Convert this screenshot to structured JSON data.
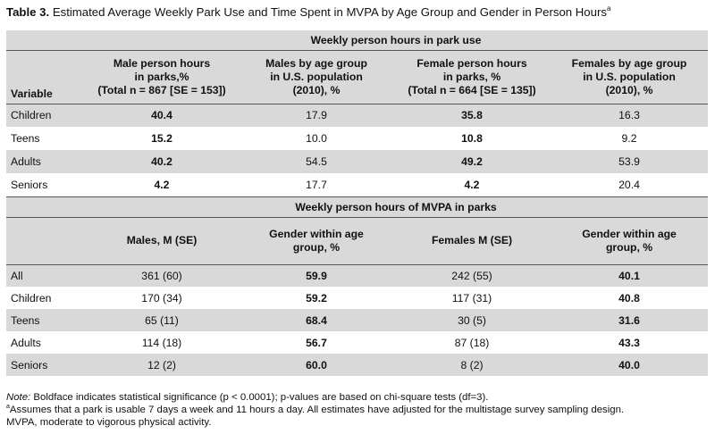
{
  "caption": {
    "label": "Table 3.",
    "text": "Estimated Average Weekly Park Use and Time Spent in MVPA by Age Group and Gender in Person Hours",
    "footnote_mark": "a"
  },
  "section1": {
    "title": "Weekly person hours in park use",
    "headers": {
      "variable": "Variable",
      "male_hours": [
        "Male person hours",
        "in parks,%",
        "(Total n = 867 [SE = 153])"
      ],
      "males_pop": [
        "Males by age group",
        "in U.S. population",
        "(2010), %"
      ],
      "female_hours": [
        "Female person hours",
        "in parks, %",
        "(Total n = 664 [SE = 135])"
      ],
      "females_pop": [
        "Females by age group",
        "in U.S. population",
        "(2010), %"
      ]
    },
    "rows": [
      {
        "label": "Children",
        "male_hours": "40.4",
        "males_pop": "17.9",
        "female_hours": "35.8",
        "females_pop": "16.3"
      },
      {
        "label": "Teens",
        "male_hours": "15.2",
        "males_pop": "10.0",
        "female_hours": "10.8",
        "females_pop": "9.2"
      },
      {
        "label": "Adults",
        "male_hours": "40.2",
        "males_pop": "54.5",
        "female_hours": "49.2",
        "females_pop": "53.9"
      },
      {
        "label": "Seniors",
        "male_hours": "4.2",
        "males_pop": "17.7",
        "female_hours": "4.2",
        "females_pop": "20.4"
      }
    ]
  },
  "section2": {
    "title": "Weekly person hours of MVPA in parks",
    "headers": {
      "males": "Males, M (SE)",
      "gender_m": [
        "Gender within age",
        "group, %"
      ],
      "females": "Females M (SE)",
      "gender_f": [
        "Gender within age",
        "group, %"
      ]
    },
    "rows": [
      {
        "label": "All",
        "males": "361 (60)",
        "gender_m": "59.9",
        "females": "242 (55)",
        "gender_f": "40.1"
      },
      {
        "label": "Children",
        "males": "170 (34)",
        "gender_m": "59.2",
        "females": "117 (31)",
        "gender_f": "40.8"
      },
      {
        "label": "Teens",
        "males": "65 (11)",
        "gender_m": "68.4",
        "females": "30 (5)",
        "gender_f": "31.6"
      },
      {
        "label": "Adults",
        "males": "114 (18)",
        "gender_m": "56.7",
        "females": "87 (18)",
        "gender_f": "43.3"
      },
      {
        "label": "Seniors",
        "males": "12 (2)",
        "gender_m": "60.0",
        "females": "8 (2)",
        "gender_f": "40.0"
      }
    ]
  },
  "notes": {
    "note_label": "Note:",
    "note_text": "Boldface indicates statistical significance (p < 0.0001); p-values are based on chi-square tests (df=3).",
    "footnote_mark": "a",
    "footnote_text": "Assumes that a park is usable 7 days a week and 11 hours a day. All estimates have adjusted for the multistage survey sampling design.",
    "abbrev_text": "MVPA, moderate to vigorous physical activity."
  }
}
